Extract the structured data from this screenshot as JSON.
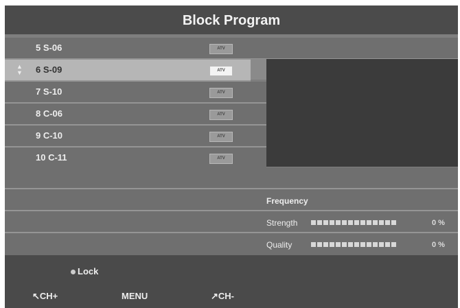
{
  "title": "Block Program",
  "channels": [
    {
      "label": "5  S-06",
      "type": "ATV"
    },
    {
      "label": "6  S-09",
      "type": "ATV",
      "selected": true
    },
    {
      "label": "7  S-10",
      "type": "ATV"
    },
    {
      "label": "8  C-06",
      "type": "ATV"
    },
    {
      "label": "9  C-10",
      "type": "ATV"
    },
    {
      "label": "10 C-11",
      "type": "ATV"
    }
  ],
  "signal": {
    "frequency_label": "Frequency",
    "strength_label": "Strength",
    "strength_value": "0 %",
    "strength_percent": 0,
    "quality_label": "Quality",
    "quality_value": "0 %",
    "quality_percent": 0
  },
  "footer": {
    "lock": "Lock",
    "ch_up": "CH+",
    "menu": "MENU",
    "ch_down": "CH-"
  }
}
